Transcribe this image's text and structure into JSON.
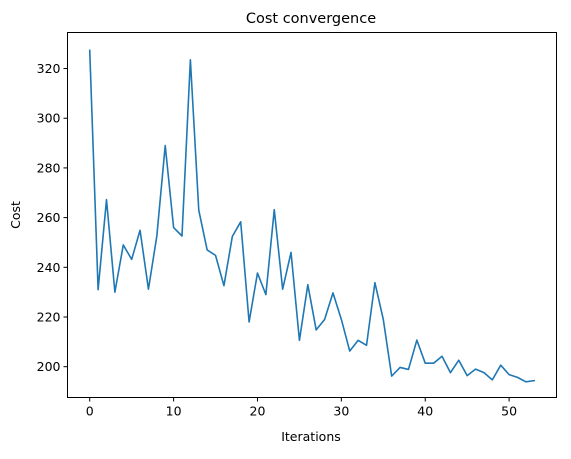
{
  "chart_data": {
    "type": "line",
    "title": "Cost convergence",
    "xlabel": "Iterations",
    "ylabel": "Cost",
    "xlim": [
      -2.65,
      55.65
    ],
    "ylim": [
      187.6,
      334.5
    ],
    "x_ticks": [
      0,
      10,
      20,
      30,
      40,
      50
    ],
    "y_ticks": [
      200,
      220,
      240,
      260,
      280,
      300,
      320
    ],
    "grid": false,
    "series": [
      {
        "color": "#1f77b4",
        "x": [
          0,
          1,
          2,
          3,
          4,
          5,
          6,
          7,
          8,
          9,
          10,
          11,
          12,
          13,
          14,
          15,
          16,
          17,
          18,
          19,
          20,
          21,
          22,
          23,
          24,
          25,
          26,
          27,
          28,
          29,
          30,
          31,
          32,
          33,
          34,
          35,
          36,
          37,
          38,
          39,
          40,
          41,
          42,
          43,
          44,
          45,
          46,
          47,
          48,
          49,
          50,
          51,
          52,
          53
        ],
        "values": [
          327.3,
          231.0,
          267.2,
          230.0,
          249.0,
          243.2,
          254.9,
          231.2,
          252.6,
          289.0,
          256.0,
          252.6,
          323.5,
          263.0,
          247.0,
          244.8,
          232.6,
          252.4,
          258.3,
          218.0,
          237.7,
          229.0,
          263.2,
          231.2,
          246.0,
          210.6,
          233.0,
          214.8,
          219.0,
          229.7,
          219.0,
          206.3,
          210.6,
          208.6,
          233.8,
          219.0,
          196.2,
          199.7,
          198.9,
          210.7,
          201.4,
          201.4,
          204.2,
          197.6,
          202.6,
          196.4,
          199.0,
          197.6,
          194.7,
          200.6,
          196.8,
          195.7,
          193.9,
          194.4
        ]
      }
    ]
  }
}
